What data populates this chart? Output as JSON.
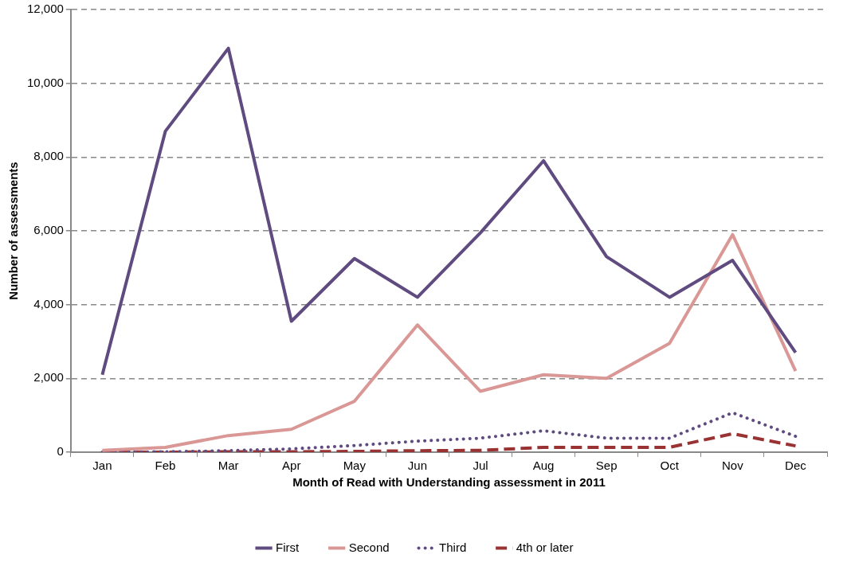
{
  "chart_data": {
    "type": "line",
    "xlabel": "Month of Read with Understanding assessment in 2011",
    "ylabel": "Number of assessments",
    "categories": [
      "Jan",
      "Feb",
      "Mar",
      "Apr",
      "May",
      "Jun",
      "Jul",
      "Aug",
      "Sep",
      "Oct",
      "Nov",
      "Dec"
    ],
    "series": [
      {
        "name": "First",
        "color": "#5f4b7f",
        "line_style": "solid",
        "values": [
          2100,
          8700,
          10950,
          3550,
          5250,
          4200,
          5950,
          7900,
          5300,
          4200,
          5200,
          2700
        ]
      },
      {
        "name": "Second",
        "color": "#d99795",
        "line_style": "solid",
        "values": [
          50,
          130,
          450,
          620,
          1380,
          3450,
          1650,
          2100,
          2000,
          2950,
          5900,
          2200
        ]
      },
      {
        "name": "Third",
        "color": "#5f4b7f",
        "line_style": "dotted",
        "values": [
          0,
          10,
          40,
          90,
          180,
          300,
          380,
          580,
          380,
          380,
          1070,
          430
        ]
      },
      {
        "name": "4th or later",
        "color": "#993333",
        "line_style": "dashed",
        "values": [
          0,
          0,
          10,
          10,
          20,
          40,
          50,
          130,
          130,
          130,
          500,
          170
        ]
      }
    ],
    "ylim": [
      0,
      12000
    ],
    "yticks": [
      0,
      {
        "value": 2000,
        "label": "2,000"
      },
      {
        "value": 4000,
        "label": "4,000"
      },
      {
        "value": 6000,
        "label": "6,000"
      },
      {
        "value": 8000,
        "label": "8,000"
      },
      {
        "value": 10000,
        "label": "10,000"
      },
      {
        "value": 12000,
        "label": "12,000"
      }
    ],
    "grid": "y",
    "legend": "bottom",
    "marker": "none"
  }
}
